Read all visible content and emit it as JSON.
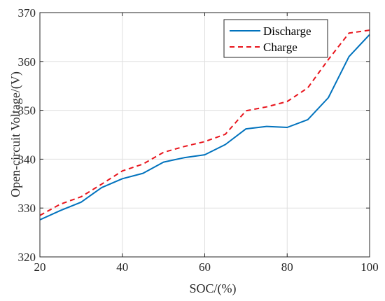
{
  "chart_data": {
    "type": "line",
    "title": "",
    "xlabel": "SOC/(%)",
    "ylabel": "Open-circuit Voltage/(V)",
    "xlim": [
      20,
      100
    ],
    "ylim": [
      320,
      370
    ],
    "xticks": [
      20,
      40,
      60,
      80,
      100
    ],
    "yticks": [
      320,
      330,
      340,
      350,
      360,
      370
    ],
    "grid": true,
    "legend": "top-right",
    "series": [
      {
        "name": "Discharge",
        "color": "#0072BD",
        "style": "solid",
        "x": [
          20,
          25,
          30,
          35,
          40,
          45,
          50,
          55,
          60,
          65,
          70,
          75,
          80,
          85,
          90,
          95,
          100
        ],
        "y": [
          327.6,
          329.5,
          331.2,
          334.2,
          336.0,
          337.1,
          339.4,
          340.3,
          340.9,
          343.0,
          346.2,
          346.7,
          346.5,
          348.1,
          352.6,
          361.0,
          365.5
        ]
      },
      {
        "name": "Charge",
        "color": "#E8141C",
        "style": "dashed",
        "x": [
          20,
          25,
          30,
          35,
          40,
          45,
          50,
          55,
          60,
          65,
          70,
          75,
          80,
          85,
          90,
          95,
          100
        ],
        "y": [
          328.5,
          330.8,
          332.3,
          334.9,
          337.6,
          339.0,
          341.4,
          342.6,
          343.6,
          345.1,
          349.9,
          350.7,
          351.8,
          354.6,
          360.4,
          365.8,
          366.4
        ]
      }
    ]
  }
}
